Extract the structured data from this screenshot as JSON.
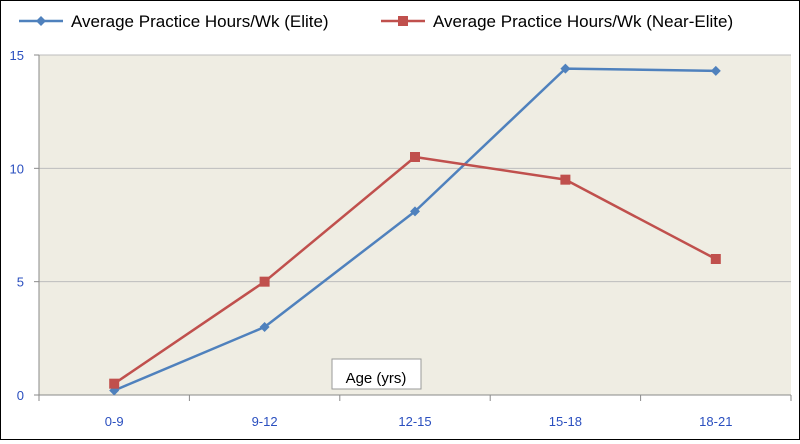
{
  "chart_data": {
    "type": "line",
    "categories": [
      "0-9",
      "9-12",
      "12-15",
      "15-18",
      "18-21"
    ],
    "series": [
      {
        "name": "Average Practice Hours/Wk (Elite)",
        "values": [
          0.2,
          3.0,
          8.1,
          14.4,
          14.3
        ],
        "color": "#4f81bd",
        "marker": "diamond"
      },
      {
        "name": "Average Practice Hours/Wk (Near-Elite)",
        "values": [
          0.5,
          5.0,
          10.5,
          9.5,
          6.0
        ],
        "color": "#c0504d",
        "marker": "square"
      }
    ],
    "yticks": [
      0,
      5,
      10,
      15
    ],
    "ylim": [
      0,
      15
    ],
    "xlabel": "Age (yrs)",
    "ylabel": "",
    "title": "",
    "grid": "horizontal",
    "legend": "top",
    "plot_background": "#efede3",
    "tick_label_color": "#2a4fbf"
  }
}
